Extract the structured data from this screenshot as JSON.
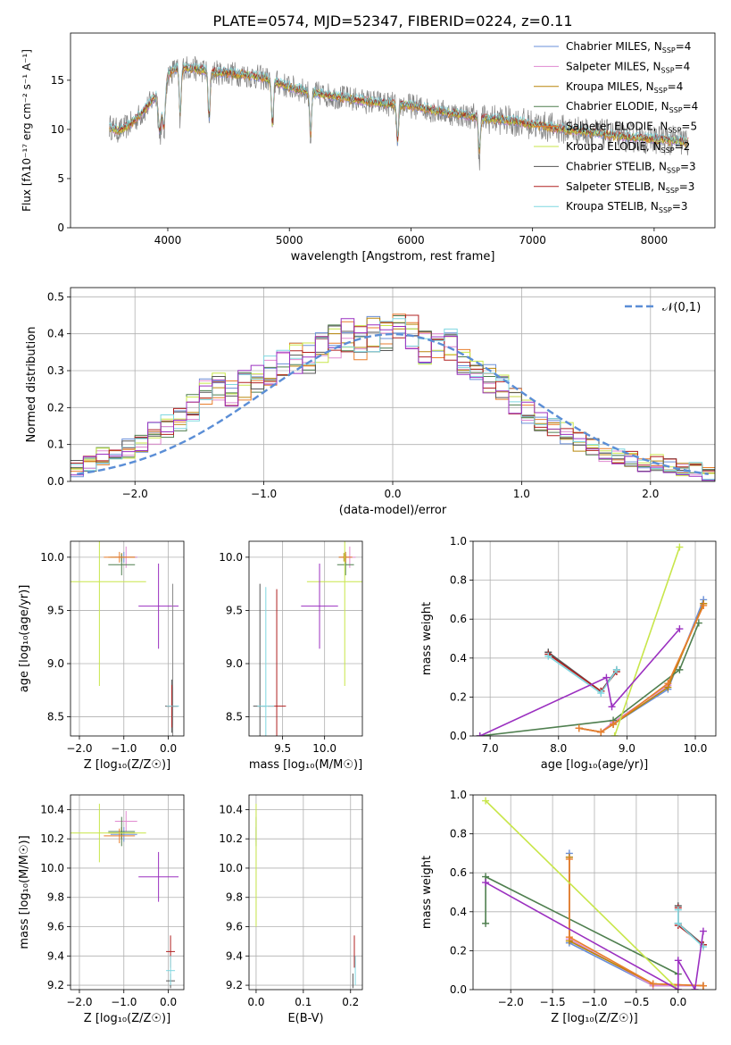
{
  "figure_title": "PLATE=0574, MJD=52347, FIBERID=0224, z=0.11",
  "series_names": [
    "Chabrier MILES",
    "Salpeter MILES",
    "Kroupa MILES",
    "Chabrier ELODIE",
    "Salpeter ELODIE",
    "Kroupa ELODIE",
    "Chabrier STELIB",
    "Salpeter STELIB",
    "Kroupa STELIB"
  ],
  "series_colors": [
    "#6a8fd8",
    "#e08ad0",
    "#b8860b",
    "#4f7f4f",
    "#e87e2c",
    "#c8e64a",
    "#555555",
    "#b02020",
    "#7fd7e0"
  ],
  "chart_data": [
    {
      "type": "line",
      "title": "PLATE=0574, MJD=52347, FIBERID=0224, z=0.11",
      "xlabel": "wavelength [Angstrom, rest frame]",
      "ylabel": "Flux [fλ10⁻¹⁷ erg cm⁻² s⁻¹ A⁻¹]",
      "xlim": [
        3200,
        8500
      ],
      "ylim": [
        0,
        19.8
      ],
      "xticks": [
        4000,
        5000,
        6000,
        7000,
        8000
      ],
      "yticks": [
        0,
        5,
        10,
        15
      ],
      "grid": false,
      "legend_position": "top-right",
      "legend": [
        {
          "name": "Chabrier MILES",
          "nssp": "4"
        },
        {
          "name": "Salpeter MILES",
          "nssp": "4"
        },
        {
          "name": "Kroupa MILES",
          "nssp": "4"
        },
        {
          "name": "Chabrier ELODIE",
          "nssp": "4"
        },
        {
          "name": "Salpeter ELODIE",
          "nssp": "5"
        },
        {
          "name": "Kroupa ELODIE",
          "nssp": "2"
        },
        {
          "name": "Chabrier STELIB",
          "nssp": "3"
        },
        {
          "name": "Salpeter STELIB",
          "nssp": "3"
        },
        {
          "name": "Kroupa STELIB",
          "nssp": "3"
        }
      ],
      "nssp_prefix": "N",
      "nssp_sub": "SSP",
      "continuum": {
        "x": [
          3520,
          3600,
          3700,
          3800,
          3900,
          4000,
          4100,
          4200,
          4400,
          4600,
          4800,
          5000,
          5200,
          5400,
          5600,
          5800,
          6000,
          6200,
          6400,
          6600,
          6800,
          7000,
          7200,
          7400,
          7600,
          7800,
          8000,
          8200,
          8280
        ],
        "y": [
          10.3,
          9.8,
          10.6,
          11.8,
          13.4,
          15.6,
          16.4,
          16.2,
          15.8,
          15.6,
          15.2,
          14.3,
          13.7,
          13.3,
          12.9,
          12.6,
          12.4,
          11.9,
          11.5,
          11.1,
          10.9,
          10.5,
          10.1,
          9.8,
          9.5,
          9.2,
          9.0,
          8.8,
          8.7
        ]
      },
      "absorption_lines": [
        3934,
        3968,
        4102,
        4340,
        4861,
        5175,
        5890,
        6563
      ]
    },
    {
      "type": "line",
      "xlabel": "(data-model)/error",
      "ylabel": "Normed distribution",
      "xlim": [
        -2.5,
        2.5
      ],
      "ylim": [
        0,
        0.525
      ],
      "xticks": [
        -2,
        -1,
        0,
        1,
        2
      ],
      "yticks": [
        0.0,
        0.1,
        0.2,
        0.3,
        0.4,
        0.5
      ],
      "grid": true,
      "legend_position": "top-right",
      "reference_curve": {
        "name": "𝒩(0,1)",
        "style": "dashed",
        "color": "#5b8ed6"
      },
      "histogram_profile": {
        "bin_width": 0.1,
        "x_centers": [
          -2.45,
          -2.35,
          -2.25,
          -2.15,
          -2.05,
          -1.95,
          -1.85,
          -1.75,
          -1.65,
          -1.55,
          -1.45,
          -1.35,
          -1.25,
          -1.15,
          -1.05,
          -0.95,
          -0.85,
          -0.75,
          -0.65,
          -0.55,
          -0.45,
          -0.35,
          -0.25,
          -0.15,
          -0.05,
          0.05,
          0.15,
          0.25,
          0.35,
          0.45,
          0.55,
          0.65,
          0.75,
          0.85,
          0.95,
          1.05,
          1.15,
          1.25,
          1.35,
          1.45,
          1.55,
          1.65,
          1.75,
          1.85,
          1.95,
          2.05,
          2.15,
          2.25,
          2.35,
          2.45
        ],
        "values": [
          0.035,
          0.05,
          0.07,
          0.08,
          0.09,
          0.1,
          0.13,
          0.15,
          0.17,
          0.2,
          0.24,
          0.26,
          0.24,
          0.26,
          0.28,
          0.3,
          0.32,
          0.33,
          0.33,
          0.36,
          0.38,
          0.39,
          0.38,
          0.4,
          0.39,
          0.41,
          0.4,
          0.36,
          0.38,
          0.37,
          0.33,
          0.3,
          0.28,
          0.25,
          0.22,
          0.19,
          0.17,
          0.15,
          0.13,
          0.11,
          0.09,
          0.08,
          0.07,
          0.06,
          0.05,
          0.05,
          0.04,
          0.03,
          0.03,
          0.02
        ]
      }
    },
    {
      "type": "scatter",
      "xlabel": "Z [log₁₀(Z/Z☉)]",
      "ylabel": "age  [log₁₀(age/yr)]",
      "xlim": [
        -2.2,
        0.35
      ],
      "ylim": [
        8.32,
        10.15
      ],
      "xticks": [
        -2,
        -1,
        0
      ],
      "yticks": [
        8.5,
        9.0,
        9.5,
        10.0
      ],
      "grid": true,
      "points": [
        {
          "series": 0,
          "x": -1.0,
          "y": 10.0,
          "xerr": 0.3,
          "yerr": 0.05
        },
        {
          "series": 1,
          "x": -0.95,
          "y": 10.0,
          "xerr": 0.25,
          "yerr": 0.1
        },
        {
          "series": 2,
          "x": -1.05,
          "y": 10.0,
          "xerr": 0.3,
          "yerr": 0.04
        },
        {
          "series": 3,
          "x": -1.05,
          "y": 9.93,
          "xerr": 0.3,
          "yerr": 0.1
        },
        {
          "series": 4,
          "x": -1.1,
          "y": 10.0,
          "xerr": 0.35,
          "yerr": 0.05
        },
        {
          "series": 5,
          "x": -1.55,
          "y": 9.77,
          "xerr": 1.05,
          "yerr": 0.98
        },
        {
          "series": 6,
          "x": 0.08,
          "y": 8.6,
          "xerr": 0.15,
          "yerr": 0.25
        },
        {
          "series": 7,
          "x": 0.08,
          "y": 8.6,
          "xerr": 0.12,
          "yerr": 0.2
        },
        {
          "series": 8,
          "x": 0.1,
          "y": 8.6,
          "xerr": 0.14,
          "yerr": 0.18
        },
        {
          "series": 9,
          "x": -0.22,
          "y": 9.54,
          "xerr": 0.45,
          "yerr": 0.4,
          "color": "#9b30c0"
        },
        {
          "series": 10,
          "x": 0.1,
          "y": 9.0,
          "xerr": 0.0,
          "yerr": 0.75,
          "color": "#888888"
        }
      ]
    },
    {
      "type": "scatter",
      "xlabel": "mass [log₁₀(M/M☉)]",
      "ylabel": "",
      "xlim": [
        9.1,
        10.45
      ],
      "ylim": [
        8.32,
        10.15
      ],
      "xticks": [
        9.5,
        10.0
      ],
      "yticks": [
        8.5,
        9.0,
        9.5,
        10.0
      ],
      "grid": true,
      "points": [
        {
          "series": 0,
          "x": 10.25,
          "y": 10.0,
          "xerr": 0.08,
          "yerr": 0.05
        },
        {
          "series": 1,
          "x": 10.3,
          "y": 10.0,
          "xerr": 0.07,
          "yerr": 0.1
        },
        {
          "series": 2,
          "x": 10.23,
          "y": 10.0,
          "xerr": 0.06,
          "yerr": 0.04
        },
        {
          "series": 3,
          "x": 10.25,
          "y": 9.93,
          "xerr": 0.1,
          "yerr": 0.1
        },
        {
          "series": 4,
          "x": 10.25,
          "y": 10.0,
          "xerr": 0.08,
          "yerr": 0.05
        },
        {
          "series": 5,
          "x": 10.24,
          "y": 9.77,
          "xerr": 0.45,
          "yerr": 0.98
        },
        {
          "series": 6,
          "x": 9.23,
          "y": 8.6,
          "xerr": 0.08,
          "yerr": 1.15
        },
        {
          "series": 7,
          "x": 9.43,
          "y": 8.6,
          "xerr": 0.11,
          "yerr": 1.1
        },
        {
          "series": 8,
          "x": 9.3,
          "y": 8.6,
          "xerr": 0.1,
          "yerr": 1.12
        },
        {
          "series": 9,
          "x": 9.94,
          "y": 9.54,
          "xerr": 0.22,
          "yerr": 0.4,
          "color": "#9b30c0"
        }
      ]
    },
    {
      "type": "line",
      "xlabel": "age  [log₁₀(age/yr)]",
      "ylabel": "mass weight",
      "xlim": [
        6.75,
        10.3
      ],
      "ylim": [
        0,
        1.0
      ],
      "xticks": [
        7,
        8,
        9,
        10
      ],
      "yticks": [
        0.0,
        0.2,
        0.4,
        0.6,
        0.8,
        1.0
      ],
      "grid": true,
      "series": [
        {
          "color": "#6a8fd8",
          "x": [
            8.3,
            8.62,
            8.8,
            9.6,
            10.12
          ],
          "y": [
            0.04,
            0.02,
            0.06,
            0.24,
            0.7
          ]
        },
        {
          "color": "#e08ad0",
          "x": [
            8.3,
            8.62,
            8.8,
            9.6,
            10.12
          ],
          "y": [
            0.04,
            0.02,
            0.07,
            0.26,
            0.68
          ]
        },
        {
          "color": "#b8860b",
          "x": [
            8.3,
            8.62,
            8.8,
            9.6,
            10.12
          ],
          "y": [
            0.04,
            0.02,
            0.06,
            0.25,
            0.68
          ]
        },
        {
          "color": "#4f7f4f",
          "x": [
            6.85,
            8.8,
            9.77,
            10.05
          ],
          "y": [
            0.0,
            0.08,
            0.34,
            0.58
          ]
        },
        {
          "color": "#e87e2c",
          "x": [
            8.3,
            8.62,
            8.8,
            9.6,
            10.12
          ],
          "y": [
            0.04,
            0.02,
            0.06,
            0.27,
            0.67
          ]
        },
        {
          "color": "#c8e64a",
          "x": [
            8.82,
            9.77
          ],
          "y": [
            0.0,
            0.97
          ]
        },
        {
          "color": "#555555",
          "x": [
            7.85,
            8.62,
            8.85
          ],
          "y": [
            0.43,
            0.23,
            0.34
          ]
        },
        {
          "color": "#b02020",
          "x": [
            7.85,
            8.62,
            8.85
          ],
          "y": [
            0.42,
            0.23,
            0.33
          ]
        },
        {
          "color": "#7fd7e0",
          "x": [
            7.85,
            8.62,
            8.85
          ],
          "y": [
            0.41,
            0.22,
            0.34
          ]
        },
        {
          "color": "#9b30c0",
          "x": [
            6.85,
            8.7,
            8.78,
            9.77
          ],
          "y": [
            0.0,
            0.3,
            0.15,
            0.55
          ]
        }
      ]
    },
    {
      "type": "scatter",
      "xlabel": "Z [log₁₀(Z/Z☉)]",
      "ylabel": "mass [log₁₀(M/M☉)]",
      "xlim": [
        -2.2,
        0.35
      ],
      "ylim": [
        9.17,
        10.5
      ],
      "xticks": [
        -2,
        -1,
        0
      ],
      "yticks": [
        9.2,
        9.4,
        9.6,
        9.8,
        10.0,
        10.2,
        10.4
      ],
      "grid": true,
      "points": [
        {
          "series": 0,
          "x": -1.0,
          "y": 10.23,
          "xerr": 0.3,
          "yerr": 0.05
        },
        {
          "series": 1,
          "x": -0.95,
          "y": 10.32,
          "xerr": 0.25,
          "yerr": 0.07
        },
        {
          "series": 2,
          "x": -1.05,
          "y": 10.24,
          "xerr": 0.3,
          "yerr": 0.04
        },
        {
          "series": 3,
          "x": -1.05,
          "y": 10.25,
          "xerr": 0.3,
          "yerr": 0.1
        },
        {
          "series": 4,
          "x": -1.1,
          "y": 10.22,
          "xerr": 0.35,
          "yerr": 0.05
        },
        {
          "series": 5,
          "x": -1.55,
          "y": 10.24,
          "xerr": 1.05,
          "yerr": 0.2
        },
        {
          "series": 6,
          "x": 0.05,
          "y": 9.23,
          "xerr": 0.1,
          "yerr": 0.05
        },
        {
          "series": 7,
          "x": 0.05,
          "y": 9.43,
          "xerr": 0.1,
          "yerr": 0.11
        },
        {
          "series": 8,
          "x": 0.05,
          "y": 9.3,
          "xerr": 0.1,
          "yerr": 0.1
        },
        {
          "series": 9,
          "x": -0.22,
          "y": 9.94,
          "xerr": 0.45,
          "yerr": 0.17,
          "color": "#9b30c0"
        }
      ]
    },
    {
      "type": "scatter",
      "xlabel": "E(B-V)",
      "ylabel": "",
      "xlim": [
        -0.015,
        0.225
      ],
      "ylim": [
        9.17,
        10.5
      ],
      "xticks": [
        0.0,
        0.1,
        0.2
      ],
      "yticks": [
        9.2,
        9.4,
        9.6,
        9.8,
        10.0,
        10.2,
        10.4
      ],
      "grid": true,
      "points": [
        {
          "series": 0,
          "x": 0.0,
          "y": 10.23,
          "xerr": 0.0,
          "yerr": 0.05
        },
        {
          "series": 3,
          "x": 0.0,
          "y": 10.25,
          "xerr": 0.0,
          "yerr": 0.1
        },
        {
          "series": 5,
          "x": 0.0,
          "y": 10.02,
          "xerr": 0.0,
          "yerr": 0.42
        },
        {
          "series": 7,
          "x": 0.208,
          "y": 9.43,
          "xerr": 0.0,
          "yerr": 0.11
        },
        {
          "series": 8,
          "x": 0.21,
          "y": 9.3,
          "xerr": 0.0,
          "yerr": 0.1
        },
        {
          "series": 6,
          "x": 0.205,
          "y": 9.23,
          "xerr": 0.0,
          "yerr": 0.05
        }
      ]
    },
    {
      "type": "line",
      "xlabel": "Z [log₁₀(Z/Z☉)]",
      "ylabel": "mass weight",
      "xlim": [
        -2.45,
        0.45
      ],
      "ylim": [
        0,
        1.0
      ],
      "xticks": [
        -2.0,
        -1.5,
        -1.0,
        -0.5,
        0.0
      ],
      "yticks": [
        0.0,
        0.2,
        0.4,
        0.6,
        0.8,
        1.0
      ],
      "grid": true,
      "series": [
        {
          "color": "#6a8fd8",
          "x": [
            -1.3,
            -1.3,
            -0.3,
            0.3
          ],
          "y": [
            0.7,
            0.24,
            0.02,
            0.02
          ]
        },
        {
          "color": "#e08ad0",
          "x": [
            -1.3,
            -1.3,
            -0.3,
            0.3
          ],
          "y": [
            0.68,
            0.26,
            0.02,
            0.02
          ]
        },
        {
          "color": "#b8860b",
          "x": [
            -1.3,
            -1.3,
            -0.3,
            0.3
          ],
          "y": [
            0.68,
            0.25,
            0.03,
            0.02
          ]
        },
        {
          "color": "#4f7f4f",
          "x": [
            -2.3,
            -2.3,
            0.0
          ],
          "y": [
            0.34,
            0.58,
            0.08
          ]
        },
        {
          "color": "#e87e2c",
          "x": [
            -1.3,
            -1.3,
            -0.3,
            0.3
          ],
          "y": [
            0.67,
            0.27,
            0.03,
            0.02
          ]
        },
        {
          "color": "#c8e64a",
          "x": [
            -2.3,
            0.0
          ],
          "y": [
            0.97,
            0.0
          ]
        },
        {
          "color": "#555555",
          "x": [
            0.0,
            0.0,
            0.3
          ],
          "y": [
            0.43,
            0.34,
            0.23
          ]
        },
        {
          "color": "#b02020",
          "x": [
            0.0,
            0.0,
            0.3
          ],
          "y": [
            0.42,
            0.33,
            0.23
          ]
        },
        {
          "color": "#7fd7e0",
          "x": [
            0.0,
            0.0,
            0.3
          ],
          "y": [
            0.41,
            0.34,
            0.22
          ]
        },
        {
          "color": "#9b30c0",
          "x": [
            -2.3,
            0.0,
            0.0,
            0.2,
            0.3
          ],
          "y": [
            0.55,
            0.0,
            0.15,
            0.0,
            0.3
          ]
        }
      ]
    }
  ]
}
